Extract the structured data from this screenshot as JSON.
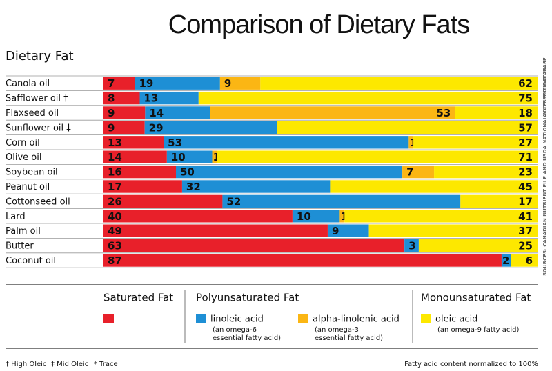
{
  "chart_data": {
    "type": "stacked-bar-horizontal",
    "title": "Comparison of Dietary Fats",
    "category_header": "Dietary Fat",
    "categories": [
      "Canola oil",
      "Safflower oil †",
      "Flaxseed oil",
      "Sunflower oil ‡",
      "Corn oil",
      "Olive oil",
      "Soybean oil",
      "Peanut oil",
      "Cottonseed oil",
      "Lard",
      "Palm oil",
      "Butter",
      "Coconut oil"
    ],
    "series": [
      {
        "name": "Saturated Fat",
        "color": "#e8202a",
        "values": [
          7,
          8,
          9,
          9,
          13,
          14,
          16,
          17,
          26,
          40,
          49,
          63,
          87
        ]
      },
      {
        "name": "linoleic acid",
        "note": [
          "(an omega-6",
          "essential fatty acid)"
        ],
        "color": "#1e8fd5",
        "values": [
          19,
          13,
          14,
          29,
          53,
          10,
          50,
          32,
          52,
          10,
          9,
          3,
          2
        ]
      },
      {
        "name": "alpha-linolenic acid",
        "note": [
          "(an omega-3",
          "essential fatty acid)"
        ],
        "color": "#fbb614",
        "values": [
          9,
          0,
          53,
          0,
          1,
          1,
          7,
          null,
          0,
          1,
          0,
          0,
          null
        ],
        "value_labels": [
          null,
          "*",
          null,
          "*",
          null,
          null,
          null,
          null,
          "*",
          null,
          "*",
          "*",
          null
        ]
      },
      {
        "name": "oleic acid",
        "note": [
          "(an omega-9 fatty acid)"
        ],
        "color": "#fde800",
        "values": [
          62,
          75,
          18,
          57,
          27,
          71,
          23,
          45,
          17,
          41,
          37,
          25,
          6
        ]
      }
    ],
    "legend_headers": [
      "Polyunsaturated Fat",
      "Monounsaturated Fat"
    ],
    "footnotes": [
      "† High Oleic",
      "‡ Mid Oleic",
      "* Trace"
    ],
    "normalization_note": "Fatty acid content normalized to 100%",
    "sources": [
      "SOURCES: CANADIAN NUTRIENT FILE AND USDA NATIONAL NUTRIENT DATABASE",
      "ACCESSED MAY 2016"
    ]
  }
}
